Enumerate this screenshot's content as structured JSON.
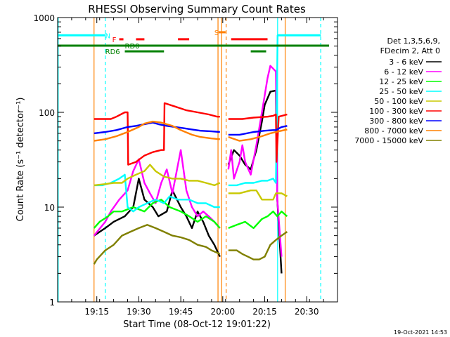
{
  "chart_data": {
    "type": "line",
    "title": "RHESSI Observing Summary Count Rates",
    "xlabel": "Start Time (08-Oct-12 19:01:22)",
    "ylabel": "Count Rate (s⁻¹ detector⁻¹)",
    "yscale": "log",
    "ylim": [
      1,
      1000
    ],
    "xlim_minutes": [
      0,
      100
    ],
    "x_ticks": [
      {
        "minute": 14,
        "label": "19:15"
      },
      {
        "minute": 29,
        "label": "19:30"
      },
      {
        "minute": 44,
        "label": "19:45"
      },
      {
        "minute": 59,
        "label": "20:00"
      },
      {
        "minute": 74,
        "label": "20:15"
      },
      {
        "minute": 89,
        "label": "20:30"
      }
    ],
    "y_ticks": [
      {
        "value": 1,
        "label": "1"
      },
      {
        "value": 10,
        "label": "10"
      },
      {
        "value": 100,
        "label": "100"
      },
      {
        "value": 1000,
        "label": "1000"
      }
    ],
    "legend_header": [
      "Det 1,3,5,6,9,",
      "FDecim 2, Att 0"
    ],
    "series": [
      {
        "name": "3 - 6 keV",
        "color": "#000000",
        "points": [
          [
            13,
            5
          ],
          [
            17,
            6
          ],
          [
            20,
            7
          ],
          [
            24,
            8
          ],
          [
            27,
            10
          ],
          [
            29,
            20
          ],
          [
            31,
            12
          ],
          [
            34,
            10
          ],
          [
            36,
            8
          ],
          [
            39,
            9
          ],
          [
            41,
            15
          ],
          [
            44,
            10
          ],
          [
            46,
            8
          ],
          [
            48,
            6
          ],
          [
            50,
            9
          ],
          [
            52,
            7
          ],
          [
            54,
            5
          ],
          [
            56,
            4
          ],
          [
            58,
            3
          ],
          null,
          [
            61,
            28
          ],
          [
            63,
            40
          ],
          [
            65,
            35
          ],
          [
            67,
            28
          ],
          [
            69,
            25
          ],
          [
            71,
            40
          ],
          [
            73,
            80
          ],
          [
            74,
            120
          ],
          [
            76,
            165
          ],
          [
            78,
            170
          ],
          [
            78.5,
            12
          ],
          [
            80,
            2
          ]
        ]
      },
      {
        "name": "6 - 12 keV",
        "color": "#ff00ff",
        "points": [
          [
            13,
            5
          ],
          [
            17,
            7
          ],
          [
            19,
            9
          ],
          [
            22,
            12
          ],
          [
            25,
            15
          ],
          [
            27,
            24
          ],
          [
            29,
            32
          ],
          [
            31,
            18
          ],
          [
            33,
            14
          ],
          [
            35,
            11
          ],
          [
            37,
            18
          ],
          [
            39,
            25
          ],
          [
            41,
            14
          ],
          [
            44,
            40
          ],
          [
            46,
            15
          ],
          [
            48,
            10
          ],
          [
            50,
            8
          ],
          [
            52,
            9
          ],
          [
            54,
            8
          ],
          [
            56,
            7
          ],
          [
            58,
            6
          ],
          null,
          [
            61,
            25
          ],
          [
            62,
            40
          ],
          [
            63,
            20
          ],
          [
            65,
            30
          ],
          [
            66,
            45
          ],
          [
            67,
            30
          ],
          [
            69,
            22
          ],
          [
            71,
            45
          ],
          [
            73,
            100
          ],
          [
            75,
            230
          ],
          [
            76,
            310
          ],
          [
            78,
            270
          ],
          [
            78.5,
            12
          ],
          [
            80,
            3
          ]
        ]
      },
      {
        "name": "12 - 25 keV",
        "color": "#00ff00",
        "points": [
          [
            13,
            6
          ],
          [
            15,
            7
          ],
          [
            18,
            8
          ],
          [
            20,
            9
          ],
          [
            23,
            9
          ],
          [
            27,
            10
          ],
          [
            31,
            9
          ],
          [
            34,
            11
          ],
          [
            37,
            12
          ],
          [
            40,
            10
          ],
          [
            44,
            9
          ],
          [
            47,
            8
          ],
          [
            50,
            7
          ],
          [
            53,
            8
          ],
          [
            56,
            7
          ],
          [
            58,
            6
          ],
          null,
          [
            61,
            6
          ],
          [
            64,
            6.5
          ],
          [
            67,
            7
          ],
          [
            70,
            6
          ],
          [
            73,
            7.5
          ],
          [
            75,
            8
          ],
          [
            77,
            9
          ],
          [
            78.5,
            8
          ],
          [
            80,
            9
          ],
          [
            82,
            8
          ]
        ]
      },
      {
        "name": "25 - 50 keV",
        "color": "#00ffff",
        "points": [
          [
            0,
            650
          ],
          [
            17,
            650
          ],
          null,
          [
            13,
            17
          ],
          [
            16,
            17
          ],
          [
            19,
            18
          ],
          [
            22,
            20
          ],
          [
            24,
            22
          ],
          [
            25,
            10
          ],
          [
            27,
            9
          ],
          [
            29,
            10
          ],
          [
            32,
            11
          ],
          [
            35,
            12
          ],
          [
            38,
            11
          ],
          [
            40,
            13
          ],
          [
            43,
            12
          ],
          [
            47,
            12
          ],
          [
            50,
            11
          ],
          [
            53,
            11
          ],
          [
            56,
            10
          ],
          [
            58,
            10
          ],
          null,
          [
            61,
            17
          ],
          [
            64,
            17
          ],
          [
            67,
            18
          ],
          [
            70,
            18
          ],
          [
            73,
            19
          ],
          [
            75,
            19
          ],
          [
            77,
            20
          ],
          [
            78,
            18
          ],
          [
            78.6,
            650
          ],
          [
            94,
            650
          ]
        ]
      },
      {
        "name": "50 - 100 keV",
        "color": "#c8c800",
        "points": [
          [
            13,
            17
          ],
          [
            17,
            17.5
          ],
          [
            20,
            18
          ],
          [
            23,
            18
          ],
          [
            25,
            20
          ],
          [
            28,
            22
          ],
          [
            31,
            24
          ],
          [
            33,
            28
          ],
          [
            35,
            24
          ],
          [
            38,
            21
          ],
          [
            41,
            20
          ],
          [
            44,
            20
          ],
          [
            47,
            19
          ],
          [
            50,
            19
          ],
          [
            53,
            18
          ],
          [
            56,
            17
          ],
          [
            58,
            18
          ],
          null,
          [
            61,
            14
          ],
          [
            65,
            14
          ],
          [
            69,
            15
          ],
          [
            71,
            15
          ],
          [
            73,
            12
          ],
          [
            75,
            12
          ],
          [
            77,
            12
          ],
          [
            78,
            14
          ],
          [
            80,
            14
          ],
          [
            82,
            13
          ]
        ]
      },
      {
        "name": "100 - 300 keV",
        "color": "#ff0000",
        "points": [
          [
            13,
            85
          ],
          [
            19,
            85
          ],
          [
            21,
            90
          ],
          [
            24,
            100
          ],
          [
            25,
            100
          ],
          [
            25.2,
            28
          ],
          [
            28,
            30
          ],
          [
            31,
            35
          ],
          [
            34,
            38
          ],
          [
            37,
            40
          ],
          [
            38,
            40
          ],
          [
            38.2,
            125
          ],
          [
            42,
            115
          ],
          [
            46,
            105
          ],
          [
            50,
            100
          ],
          [
            54,
            95
          ],
          [
            57,
            90
          ],
          [
            58,
            90
          ],
          null,
          [
            61,
            85
          ],
          [
            66,
            85
          ],
          [
            70,
            88
          ],
          [
            75,
            90
          ],
          [
            77,
            92
          ],
          [
            78,
            95
          ],
          [
            78.2,
            30
          ],
          [
            79,
            90
          ],
          [
            82,
            95
          ]
        ]
      },
      {
        "name": "300 - 800 keV",
        "color": "#0000ff",
        "points": [
          [
            13,
            60
          ],
          [
            17,
            62
          ],
          [
            21,
            65
          ],
          [
            25,
            70
          ],
          [
            28,
            72
          ],
          [
            31,
            75
          ],
          [
            34,
            78
          ],
          [
            36,
            75
          ],
          [
            39,
            72
          ],
          [
            42,
            70
          ],
          [
            45,
            68
          ],
          [
            48,
            66
          ],
          [
            51,
            64
          ],
          [
            55,
            63
          ],
          [
            58,
            62
          ],
          null,
          [
            61,
            58
          ],
          [
            65,
            58
          ],
          [
            70,
            62
          ],
          [
            74,
            64
          ],
          [
            77,
            65
          ],
          [
            78,
            65
          ],
          [
            80,
            70
          ],
          [
            82,
            72
          ]
        ]
      },
      {
        "name": "800 - 7000 keV",
        "color": "#ff8000",
        "points": [
          [
            13,
            50
          ],
          [
            17,
            52
          ],
          [
            21,
            56
          ],
          [
            25,
            62
          ],
          [
            29,
            70
          ],
          [
            31,
            76
          ],
          [
            34,
            80
          ],
          [
            37,
            78
          ],
          [
            41,
            72
          ],
          [
            44,
            65
          ],
          [
            48,
            58
          ],
          [
            51,
            55
          ],
          [
            55,
            53
          ],
          [
            58,
            52
          ],
          null,
          [
            61,
            55
          ],
          [
            65,
            50
          ],
          [
            69,
            52
          ],
          [
            73,
            56
          ],
          [
            76,
            60
          ],
          [
            78,
            62
          ],
          [
            80,
            64
          ],
          [
            82,
            66
          ]
        ]
      },
      {
        "name": "7000 - 15000 keV",
        "color": "#808000",
        "points": [
          [
            13,
            2.5
          ],
          [
            14,
            2.8
          ],
          [
            17,
            3.5
          ],
          [
            20,
            4
          ],
          [
            23,
            5
          ],
          [
            26,
            5.5
          ],
          [
            29,
            6
          ],
          [
            32,
            6.5
          ],
          [
            35,
            6
          ],
          [
            38,
            5.5
          ],
          [
            41,
            5
          ],
          [
            44,
            4.8
          ],
          [
            47,
            4.5
          ],
          [
            50,
            4
          ],
          [
            53,
            3.8
          ],
          [
            55,
            3.5
          ],
          [
            57,
            3.3
          ],
          [
            58,
            3.2
          ],
          null,
          [
            61,
            3.5
          ],
          [
            64,
            3.5
          ],
          [
            66,
            3.2
          ],
          [
            68,
            3
          ],
          [
            70,
            2.8
          ],
          [
            72,
            2.8
          ],
          [
            74,
            3
          ],
          [
            76,
            4
          ],
          [
            78,
            4.5
          ],
          [
            80,
            5
          ],
          [
            82,
            5.5
          ]
        ]
      }
    ],
    "flag_bars": [
      {
        "label": "N",
        "color": "#00ffff",
        "segments": [
          [
            0,
            17
          ],
          [
            78.6,
            94
          ]
        ],
        "value": 650,
        "label_minute": 17
      },
      {
        "label": "F",
        "color": "#ff0000",
        "segments": [
          [
            22,
            23.5
          ],
          [
            28,
            31
          ],
          [
            43,
            47
          ],
          [
            62,
            75
          ]
        ],
        "value": 590,
        "label_minute": 19.5
      },
      {
        "label": "S",
        "color": "#ff8000",
        "segments": [
          [
            57.5,
            60
          ]
        ],
        "value": 700,
        "label_minute": 56
      },
      {
        "label": "RD0",
        "color": "#008000",
        "segments": [
          [
            0,
            97
          ]
        ],
        "value": 505,
        "label_minute": 24
      },
      {
        "label": "RD6",
        "color": "#008000",
        "segments": [
          [
            24,
            38
          ],
          [
            69,
            74.5
          ]
        ],
        "value": 440,
        "label_minute": 17
      }
    ],
    "markers": [
      {
        "minute": 17,
        "color": "#00ffff",
        "style": "dashed"
      },
      {
        "minute": 78.6,
        "color": "#00ffff",
        "style": "solid"
      },
      {
        "minute": 94,
        "color": "#00ffff",
        "style": "dashed"
      },
      {
        "minute": 13,
        "color": "#ff8000",
        "style": "solid"
      },
      {
        "minute": 57.3,
        "color": "#ff8000",
        "style": "solid"
      },
      {
        "minute": 58.6,
        "color": "#ff8000",
        "style": "solid"
      },
      {
        "minute": 60.2,
        "color": "#ff8000",
        "style": "dashed"
      },
      {
        "minute": 81.3,
        "color": "#ff8000",
        "style": "solid"
      },
      {
        "minute": 0.2,
        "color": "#00ffff",
        "style": "solid"
      }
    ],
    "grid": false,
    "legend_position": "right"
  },
  "footer": {
    "timestamp": "19-Oct-2021 14:53"
  }
}
